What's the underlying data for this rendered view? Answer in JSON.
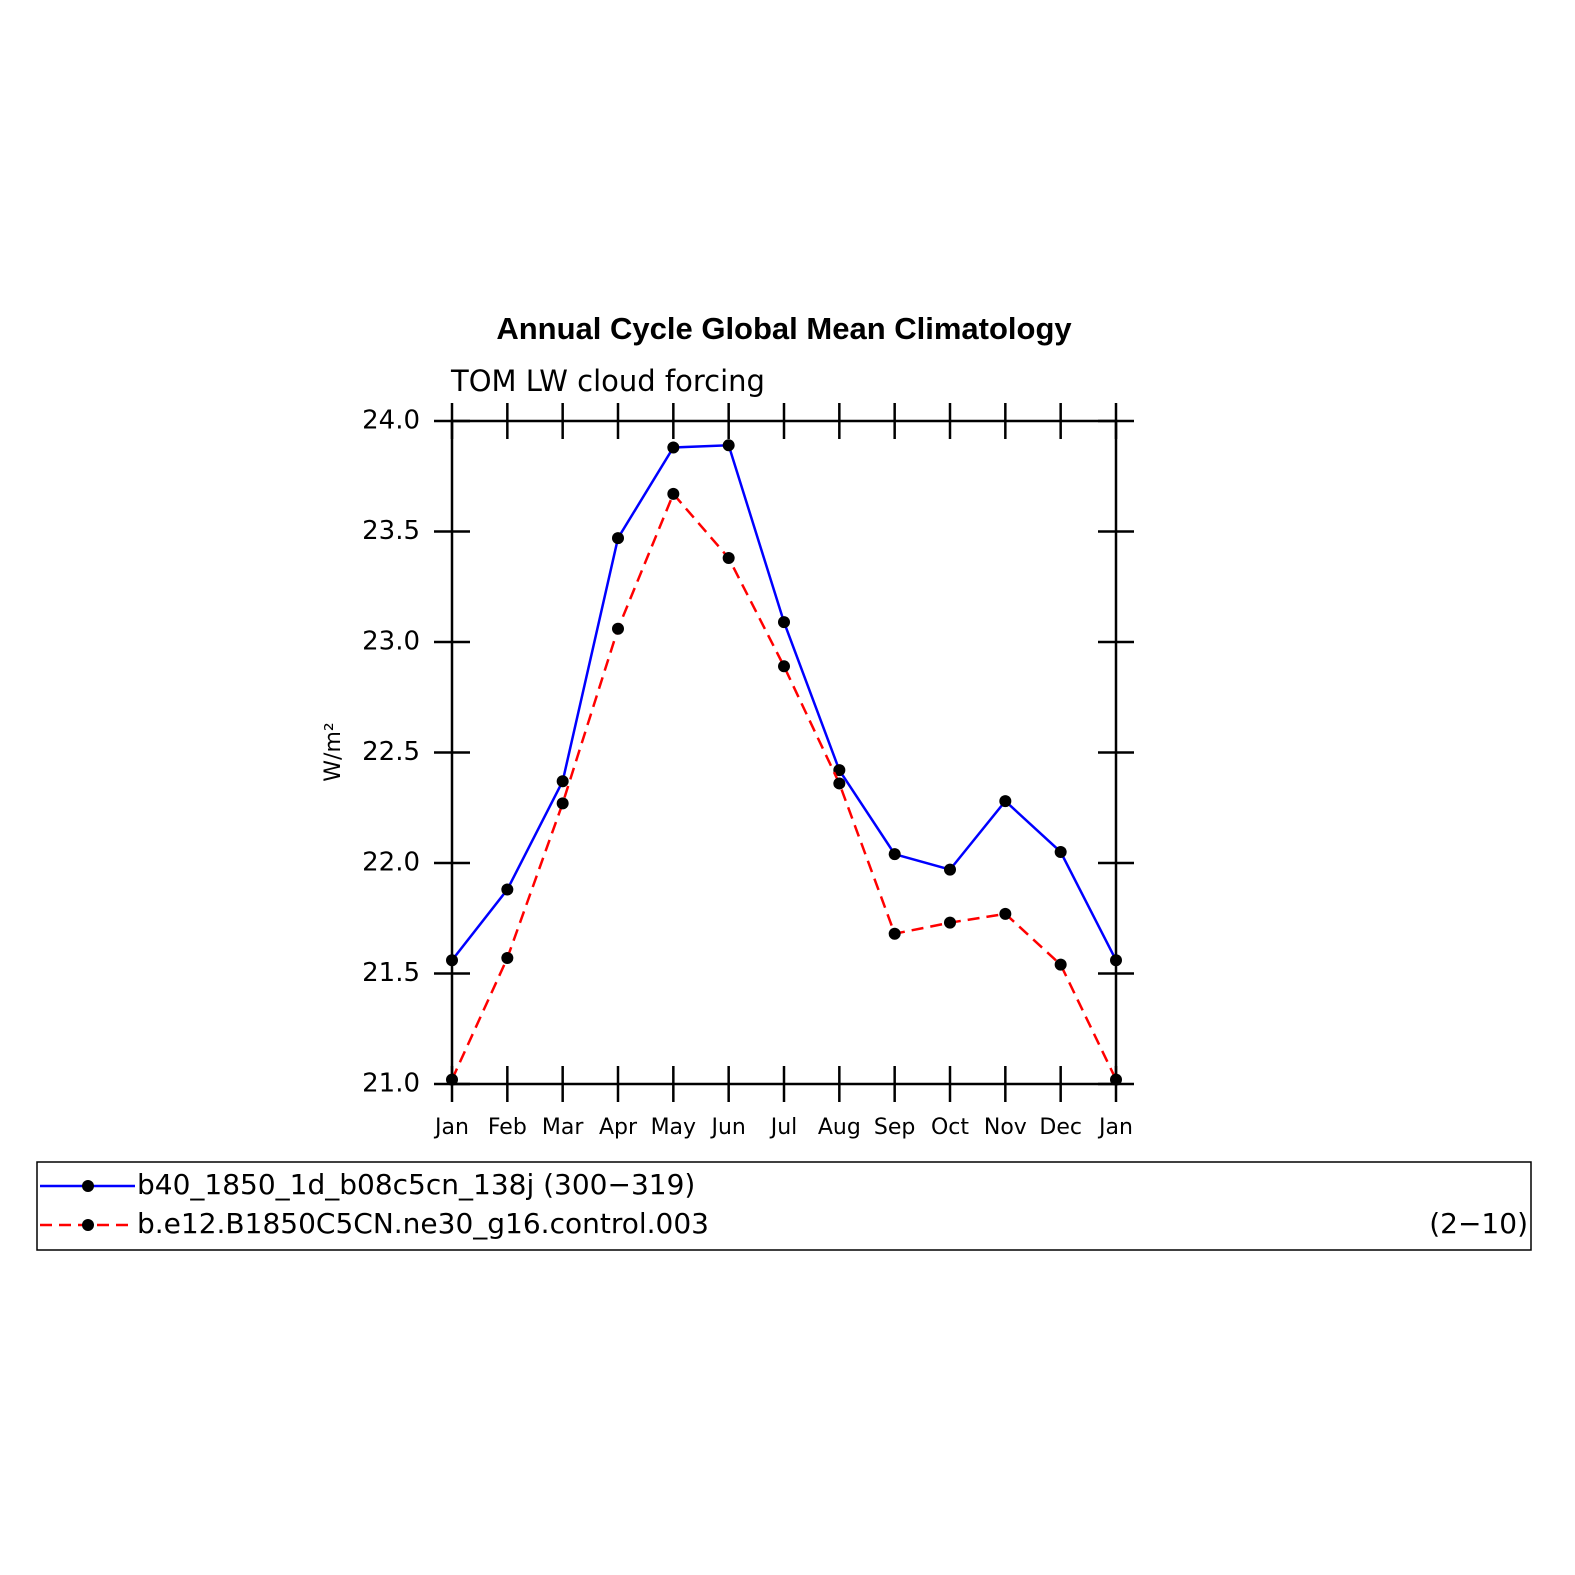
{
  "chart_data": {
    "type": "line",
    "title": "Annual Cycle Global Mean Climatology",
    "subtitle": "TOM LW cloud forcing",
    "ylabel": "W/m²",
    "categories": [
      "Jan",
      "Feb",
      "Mar",
      "Apr",
      "May",
      "Jun",
      "Jul",
      "Aug",
      "Sep",
      "Oct",
      "Nov",
      "Dec",
      "Jan"
    ],
    "series": [
      {
        "name": "b40_1850_1d_b08c5cn_138j (300−319)",
        "color": "#0000ff",
        "dash": false,
        "values": [
          21.56,
          21.88,
          22.37,
          23.47,
          23.88,
          23.89,
          23.09,
          22.42,
          22.04,
          21.97,
          22.28,
          22.05,
          21.56
        ]
      },
      {
        "name": "b.e12.B1850C5CN.ne30_g16.control.003",
        "years": "(2−10)",
        "color": "#ff0000",
        "dash": true,
        "values": [
          21.02,
          21.57,
          22.27,
          23.06,
          23.67,
          23.38,
          22.89,
          22.36,
          21.68,
          21.73,
          21.77,
          21.54,
          21.02
        ]
      }
    ],
    "marker_color": "#000000",
    "ylim": [
      21.0,
      24.0
    ],
    "yticks": [
      {
        "value": 21.0,
        "label": "21.0"
      },
      {
        "value": 21.5,
        "label": "21.5"
      },
      {
        "value": 22.0,
        "label": "22.0"
      },
      {
        "value": 22.5,
        "label": "22.5"
      },
      {
        "value": 23.0,
        "label": "23.0"
      },
      {
        "value": 23.5,
        "label": "23.5"
      },
      {
        "value": 24.0,
        "label": "24.0"
      }
    ],
    "grid": false
  }
}
